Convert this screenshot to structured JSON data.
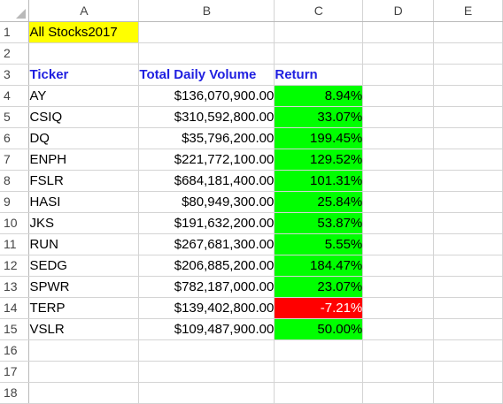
{
  "columns": [
    "A",
    "B",
    "C",
    "D",
    "E"
  ],
  "rows": [
    "1",
    "2",
    "3",
    "4",
    "5",
    "6",
    "7",
    "8",
    "9",
    "10",
    "11",
    "12",
    "13",
    "14",
    "15",
    "16",
    "17",
    "18"
  ],
  "title": "All Stocks2017",
  "headers": {
    "ticker": "Ticker",
    "volume": "Total Daily Volume",
    "return": "Return"
  },
  "stocks": [
    {
      "ticker": "AY",
      "volume": "$136,070,900.00",
      "return": "8.94%",
      "status": "positive"
    },
    {
      "ticker": "CSIQ",
      "volume": "$310,592,800.00",
      "return": "33.07%",
      "status": "positive"
    },
    {
      "ticker": "DQ",
      "volume": "$35,796,200.00",
      "return": "199.45%",
      "status": "positive"
    },
    {
      "ticker": "ENPH",
      "volume": "$221,772,100.00",
      "return": "129.52%",
      "status": "positive"
    },
    {
      "ticker": "FSLR",
      "volume": "$684,181,400.00",
      "return": "101.31%",
      "status": "positive"
    },
    {
      "ticker": "HASI",
      "volume": "$80,949,300.00",
      "return": "25.84%",
      "status": "positive"
    },
    {
      "ticker": "JKS",
      "volume": "$191,632,200.00",
      "return": "53.87%",
      "status": "positive"
    },
    {
      "ticker": "RUN",
      "volume": "$267,681,300.00",
      "return": "5.55%",
      "status": "positive"
    },
    {
      "ticker": "SEDG",
      "volume": "$206,885,200.00",
      "return": "184.47%",
      "status": "positive"
    },
    {
      "ticker": "SPWR",
      "volume": "$782,187,000.00",
      "return": "23.07%",
      "status": "positive"
    },
    {
      "ticker": "TERP",
      "volume": "$139,402,800.00",
      "return": "-7.21%",
      "status": "negative"
    },
    {
      "ticker": "VSLR",
      "volume": "$109,487,900.00",
      "return": "50.00%",
      "status": "positive"
    }
  ],
  "colors": {
    "positive": "#00ff00",
    "negative": "#ff0000",
    "title_fill": "#ffff00",
    "header_text": "#1f1fe0"
  }
}
